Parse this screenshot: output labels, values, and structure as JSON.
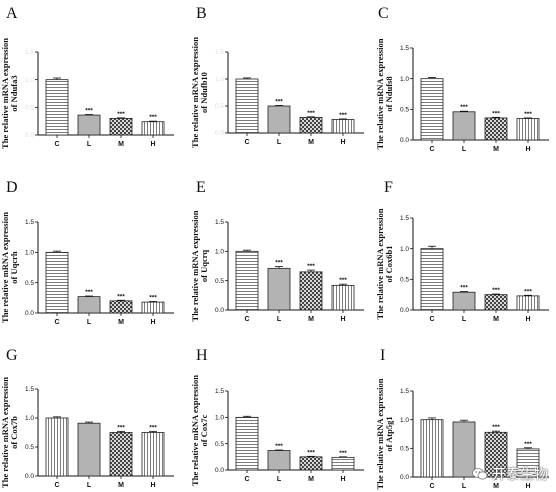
{
  "chart_data": [
    {
      "type": "bar",
      "letter": "A",
      "ylabel_lines": [
        "The relative mRNA expression",
        "of Ndufa3"
      ],
      "categories": [
        "C",
        "L",
        "M",
        "H"
      ],
      "values": [
        1.0,
        0.36,
        0.3,
        0.24
      ],
      "errors": [
        0.03,
        0.01,
        0.01,
        0.01
      ],
      "significance": [
        "",
        "***",
        "***",
        "***"
      ],
      "ylim": [
        0,
        1.5
      ],
      "yticks": [
        "0.0",
        "0.5",
        "1.0",
        "1.5"
      ],
      "show_tick_labels": false,
      "patterns": [
        "hlines",
        "solid",
        "checker",
        "vlines"
      ]
    },
    {
      "type": "bar",
      "letter": "B",
      "ylabel_lines": [
        "The relative mRNA expression",
        "of Ndufb10"
      ],
      "categories": [
        "C",
        "L",
        "M",
        "H"
      ],
      "values": [
        1.0,
        0.5,
        0.29,
        0.25
      ],
      "errors": [
        0.02,
        0.01,
        0.01,
        0.01
      ],
      "significance": [
        "",
        "***",
        "***",
        "***"
      ],
      "ylim": [
        0,
        1.5
      ],
      "yticks": [
        "0.0",
        "0.5",
        "1.0",
        "1.5"
      ],
      "show_tick_labels": false,
      "patterns": [
        "hlines",
        "solid",
        "checker",
        "vlines"
      ]
    },
    {
      "type": "bar",
      "letter": "C",
      "ylabel_lines": [
        "The relative mRNA expression",
        "of Ndufs8"
      ],
      "categories": [
        "C",
        "L",
        "M",
        "H"
      ],
      "values": [
        1.0,
        0.46,
        0.36,
        0.35
      ],
      "errors": [
        0.02,
        0.01,
        0.01,
        0.01
      ],
      "significance": [
        "",
        "***",
        "***",
        "***"
      ],
      "ylim": [
        0,
        1.5
      ],
      "yticks": [
        "0.0",
        "0.5",
        "1.0",
        "1.5"
      ],
      "show_tick_labels": true,
      "patterns": [
        "hlines",
        "solid",
        "checker",
        "vlines"
      ]
    },
    {
      "type": "bar",
      "letter": "D",
      "ylabel_lines": [
        "The relative mRNA expression",
        "of Uqcrh"
      ],
      "categories": [
        "C",
        "L",
        "M",
        "H"
      ],
      "values": [
        1.0,
        0.27,
        0.2,
        0.18
      ],
      "errors": [
        0.02,
        0.01,
        0.01,
        0.01
      ],
      "significance": [
        "",
        "***",
        "***",
        "***"
      ],
      "ylim": [
        0,
        1.5
      ],
      "yticks": [
        "0.0",
        "0.5",
        "1.0",
        "1.5"
      ],
      "show_tick_labels": true,
      "patterns": [
        "hlines",
        "solid",
        "checker",
        "vlines"
      ]
    },
    {
      "type": "bar",
      "letter": "E",
      "ylabel_lines": [
        "The relative mRNA expression",
        "of Uqcrq"
      ],
      "categories": [
        "C",
        "L",
        "M",
        "H"
      ],
      "values": [
        1.0,
        0.71,
        0.65,
        0.42
      ],
      "errors": [
        0.02,
        0.03,
        0.03,
        0.02
      ],
      "significance": [
        "",
        "***",
        "***",
        "***"
      ],
      "ylim": [
        0,
        1.5
      ],
      "yticks": [
        "0.0",
        "0.5",
        "1.0",
        "1.5"
      ],
      "show_tick_labels": true,
      "patterns": [
        "hlines",
        "solid",
        "checker",
        "vlines"
      ]
    },
    {
      "type": "bar",
      "letter": "F",
      "ylabel_lines": [
        "The relative mRNA expression",
        "of Cox6b1"
      ],
      "categories": [
        "C",
        "L",
        "M",
        "H"
      ],
      "values": [
        1.0,
        0.29,
        0.25,
        0.23
      ],
      "errors": [
        0.04,
        0.01,
        0.01,
        0.01
      ],
      "significance": [
        "",
        "***",
        "***",
        "***"
      ],
      "ylim": [
        0,
        1.5
      ],
      "yticks": [
        "0.0",
        "0.5",
        "1.0",
        "1.5"
      ],
      "show_tick_labels": true,
      "patterns": [
        "hlines",
        "solid",
        "checker",
        "vlines"
      ]
    },
    {
      "type": "bar",
      "letter": "G",
      "ylabel_lines": [
        "The relative mRNA expression",
        "of Cox7b"
      ],
      "categories": [
        "C",
        "L",
        "M",
        "H"
      ],
      "values": [
        1.0,
        0.91,
        0.75,
        0.75
      ],
      "errors": [
        0.02,
        0.02,
        0.02,
        0.02
      ],
      "significance": [
        "",
        "",
        "***",
        "***"
      ],
      "ylim": [
        0,
        1.5
      ],
      "yticks": [
        "0.0",
        "0.5",
        "1.0",
        "1.5"
      ],
      "show_tick_labels": true,
      "patterns": [
        "vlines",
        "solid",
        "checker",
        "vlines"
      ]
    },
    {
      "type": "bar",
      "letter": "H",
      "ylabel_lines": [
        "The relative mRNA expression",
        "of Cox7c"
      ],
      "categories": [
        "C",
        "L",
        "M",
        "H"
      ],
      "values": [
        1.0,
        0.37,
        0.25,
        0.24
      ],
      "errors": [
        0.02,
        0.01,
        0.01,
        0.01
      ],
      "significance": [
        "",
        "***",
        "***",
        "***"
      ],
      "ylim": [
        0,
        1.5
      ],
      "yticks": [
        "0.0",
        "0.5",
        "1.0",
        "1.5"
      ],
      "show_tick_labels": true,
      "patterns": [
        "hlines",
        "solid",
        "checker",
        "hlines"
      ]
    },
    {
      "type": "bar",
      "letter": "I",
      "ylabel_lines": [
        "The relative mRNA expression",
        "of Atp5g1"
      ],
      "categories": [
        "C",
        "L",
        "M",
        "H"
      ],
      "values": [
        1.0,
        0.96,
        0.78,
        0.49
      ],
      "errors": [
        0.03,
        0.03,
        0.02,
        0.02
      ],
      "significance": [
        "",
        "",
        "***",
        "***"
      ],
      "ylim": [
        0,
        1.5
      ],
      "yticks": [
        "0.0",
        "0.5",
        "1.0",
        "1.5"
      ],
      "show_tick_labels": true,
      "patterns": [
        "vlines",
        "solid",
        "checker",
        "hlines"
      ]
    }
  ],
  "watermark": {
    "text": "开泰生物",
    "icon": "wechat-icon",
    "color": "#ffffff"
  }
}
